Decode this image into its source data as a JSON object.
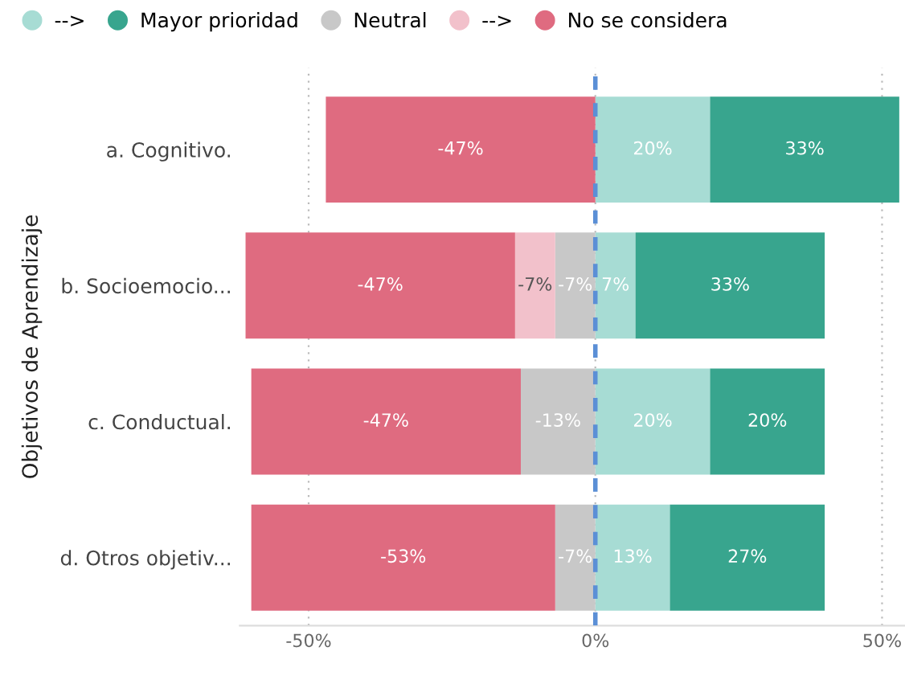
{
  "chart_data": {
    "type": "bar",
    "orientation": "horizontal",
    "stacked": true,
    "ylabel": "Objetivos de Aprendizaje",
    "categories": [
      "a. Cognitivo.",
      "b. Socioemocio...",
      "c. Conductual.",
      "d. Otros objetiv..."
    ],
    "series": [
      {
        "name": "-->",
        "color": "#a7dcd4",
        "values": [
          20,
          7,
          20,
          13
        ],
        "value_labels": [
          "20%",
          "7%",
          "20%",
          "13%"
        ]
      },
      {
        "name": "Mayor prioridad",
        "color": "#38a58e",
        "values": [
          33,
          33,
          20,
          27
        ],
        "value_labels": [
          "33%",
          "33%",
          "20%",
          "27%"
        ]
      },
      {
        "name": "Neutral",
        "color": "#c8c8c8",
        "values": [
          null,
          -7,
          -13,
          -7
        ],
        "value_labels": [
          null,
          "-7%",
          "-13%",
          "-7%"
        ]
      },
      {
        "name": "-->",
        "color": "#f2c1cb",
        "values": [
          null,
          -7,
          null,
          null
        ],
        "value_labels": [
          null,
          "-7%",
          null,
          null
        ]
      },
      {
        "name": "No se considera",
        "color": "#df6b80",
        "values": [
          -47,
          -47,
          -47,
          -53
        ],
        "value_labels": [
          "-47%",
          "-47%",
          "-47%",
          "-53%"
        ]
      }
    ],
    "xlim": [
      -62,
      54
    ],
    "xticks": [
      {
        "value": -50,
        "label": "-50%"
      },
      {
        "value": 0,
        "label": "0%"
      },
      {
        "value": 50,
        "label": "50%"
      }
    ],
    "grid": "x",
    "legend": "top left",
    "ref_lines": [
      {
        "axis": "x",
        "value": 0,
        "label": null,
        "color": "#5b8fd6",
        "line_style": "dashed"
      }
    ]
  }
}
